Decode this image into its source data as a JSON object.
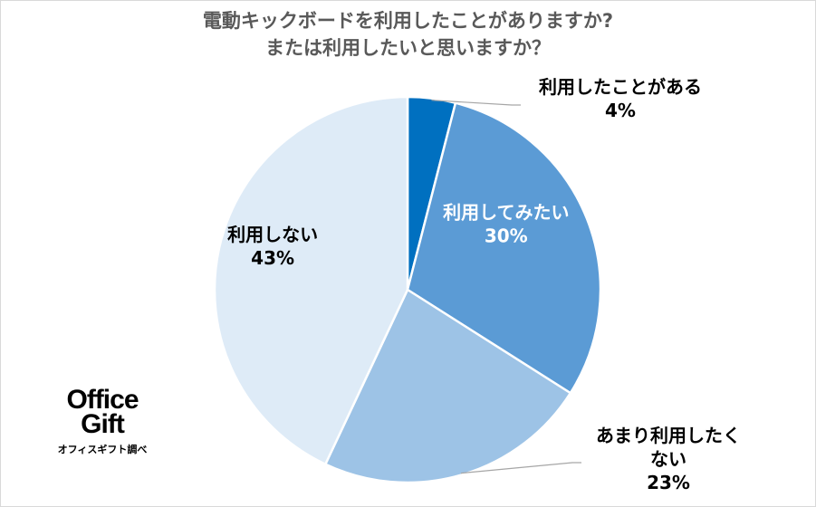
{
  "chart_data": {
    "type": "pie",
    "title": "電動キックボードを利用したことがありますか?",
    "subtitle": "または利用したいと思いますか？",
    "slices": [
      {
        "label": "利用したことがある",
        "label_lines": [
          "利用したことがある"
        ],
        "pct_text": "4%",
        "value": 4,
        "color": "#0070c0",
        "text_color": "#000000",
        "label_position": "outside-top-right"
      },
      {
        "label": "利用してみたい",
        "label_lines": [
          "利用してみたい"
        ],
        "pct_text": "30%",
        "value": 30,
        "color": "#5b9bd5",
        "text_color": "#ffffff",
        "label_position": "inside"
      },
      {
        "label": "あまり利用したくない",
        "label_lines": [
          "あまり利用したく",
          "ない"
        ],
        "pct_text": "23%",
        "value": 23,
        "color": "#9dc3e6",
        "text_color": "#000000",
        "label_position": "outside-bottom-right"
      },
      {
        "label": "利用しない",
        "label_lines": [
          "利用しない"
        ],
        "pct_text": "43%",
        "value": 43,
        "color": "#deebf7",
        "text_color": "#000000",
        "label_position": "inside"
      }
    ]
  },
  "logo": {
    "line1": "Office",
    "line2": "Gift",
    "caption": "オフィスギフト調べ"
  }
}
